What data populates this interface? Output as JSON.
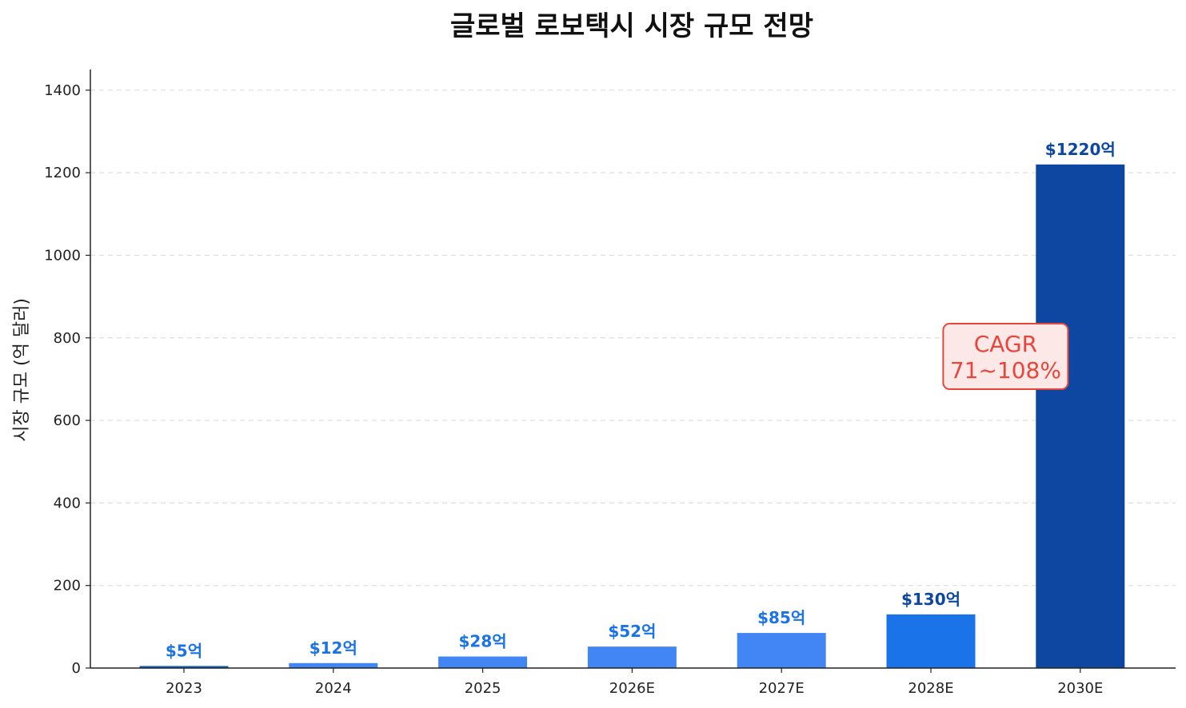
{
  "chart_data": {
    "type": "bar",
    "title": "글로벌 로보택시 시장 규모 전망",
    "ylabel": "시장 규모 (억 달러)",
    "xlabel": "",
    "categories": [
      "2023",
      "2024",
      "2025",
      "2026E",
      "2027E",
      "2028E",
      "2030E"
    ],
    "values": [
      5,
      12,
      28,
      52,
      85,
      130,
      1220
    ],
    "data_labels": [
      "$5억",
      "$12억",
      "$28억",
      "$52억",
      "$85억",
      "$130억",
      "$1220억"
    ],
    "bar_colors": [
      "#1565c0",
      "#4285f4",
      "#4285f4",
      "#4285f4",
      "#4285f4",
      "#1a73e8",
      "#0d47a1"
    ],
    "label_colors": [
      "#1a73e8",
      "#1a73e8",
      "#1a73e8",
      "#1a73e8",
      "#1a73e8",
      "#0d47a1",
      "#0d47a1"
    ],
    "ylim": [
      0,
      1450
    ],
    "yticks": [
      0,
      200,
      400,
      600,
      800,
      1000,
      1200,
      1400
    ],
    "grid": true,
    "annotation": {
      "lines": [
        "CAGR",
        "71~108%"
      ],
      "color": "#e8463c",
      "background": "#fde8e8",
      "anchor_value": 755,
      "anchor_category_position": 5.5
    }
  }
}
